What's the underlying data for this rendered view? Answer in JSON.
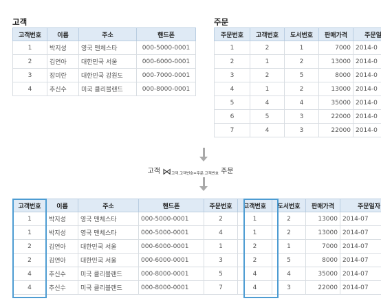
{
  "customer": {
    "title": "고객",
    "headers": [
      "고객번호",
      "이름",
      "주소",
      "핸드폰"
    ],
    "rows": [
      [
        "1",
        "박지성",
        "영국 맨체스타",
        "000-5000-0001"
      ],
      [
        "2",
        "김연아",
        "대한민국 서울",
        "000-6000-0001"
      ],
      [
        "3",
        "장미란",
        "대한민국 강원도",
        "000-7000-0001"
      ],
      [
        "4",
        "추신수",
        "미국 클리블랜드",
        "000-8000-0001"
      ]
    ]
  },
  "order": {
    "title": "주문",
    "headers": [
      "주문번호",
      "고객번호",
      "도서번호",
      "판매가격",
      "주문일"
    ],
    "rows": [
      [
        "1",
        "2",
        "1",
        "7000",
        "2014-0"
      ],
      [
        "2",
        "1",
        "2",
        "13000",
        "2014-0"
      ],
      [
        "3",
        "2",
        "5",
        "8000",
        "2014-0"
      ],
      [
        "4",
        "1",
        "2",
        "13000",
        "2014-0"
      ],
      [
        "5",
        "4",
        "4",
        "35000",
        "2014-0"
      ],
      [
        "6",
        "5",
        "3",
        "22000",
        "2014-0"
      ],
      [
        "7",
        "4",
        "3",
        "22000",
        "2014-0"
      ]
    ]
  },
  "join": {
    "left": "고객",
    "symbol": "⋈",
    "condition": "고객.고객번호=주문.고객번호",
    "right": "주문"
  },
  "result": {
    "headers": [
      "고객번호",
      "이름",
      "주소",
      "핸드폰",
      "주문번호",
      "고객번호",
      "도서번호",
      "판매가격",
      "주문일자"
    ],
    "rows": [
      [
        "1",
        "박지성",
        "영국 맨체스타",
        "000-5000-0001",
        "2",
        "1",
        "2",
        "13000",
        "2014-07"
      ],
      [
        "1",
        "박지성",
        "영국 맨체스타",
        "000-5000-0001",
        "4",
        "1",
        "2",
        "13000",
        "2014-07"
      ],
      [
        "2",
        "김연아",
        "대한민국 서울",
        "000-6000-0001",
        "1",
        "2",
        "1",
        "7000",
        "2014-07"
      ],
      [
        "2",
        "김연아",
        "대한민국 서울",
        "000-6000-0001",
        "3",
        "2",
        "5",
        "8000",
        "2014-07"
      ],
      [
        "4",
        "추신수",
        "미국 클리블랜드",
        "000-8000-0001",
        "5",
        "4",
        "4",
        "35000",
        "2014-07"
      ],
      [
        "4",
        "추신수",
        "미국 클리블랜드",
        "000-8000-0001",
        "7",
        "4",
        "3",
        "22000",
        "2014-07"
      ]
    ]
  },
  "colors": {
    "header_bg": "#dfeaf5",
    "highlight": "#4d9cd2",
    "arrow": "#a9a9a9"
  }
}
